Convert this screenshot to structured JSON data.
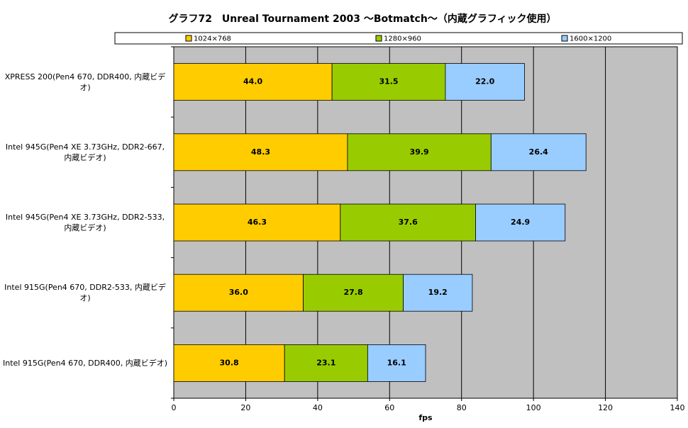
{
  "chart_data": {
    "type": "stacked_bar_horizontal",
    "title": "グラフ72　Unreal Tournament 2003 ～Botmatch～（内蔵グラフィック使用）",
    "categories": [
      "XPRESS 200(Pen4 670, DDR400, 内蔵ビデオ)",
      "Intel 945G(Pen4 XE 3.73GHz, DDR2-667, 内蔵ビデオ)",
      "Intel 945G(Pen4 XE 3.73GHz, DDR2-533, 内蔵ビデオ)",
      "Intel 915G(Pen4 670, DDR2-533, 内蔵ビデオ)",
      "Intel 915G(Pen4 670, DDR400, 内蔵ビデオ)"
    ],
    "series": [
      {
        "name": "1024×768",
        "color": "#ffcc00",
        "values": [
          44.0,
          48.3,
          46.3,
          36.0,
          30.8
        ],
        "value_labels": [
          "44.0",
          "48.3",
          "46.3",
          "36.0",
          "30.8"
        ]
      },
      {
        "name": "1280×960",
        "color": "#99cc00",
        "values": [
          31.5,
          39.9,
          37.6,
          27.8,
          23.1
        ],
        "value_labels": [
          "31.5",
          "39.9",
          "37.6",
          "27.8",
          "23.1"
        ]
      },
      {
        "name": "1600×1200",
        "color": "#99ccff",
        "values": [
          22.0,
          26.4,
          24.9,
          19.2,
          16.1
        ],
        "value_labels": [
          "22.0",
          "26.4",
          "24.9",
          "19.2",
          "16.1"
        ]
      }
    ],
    "x_label": "fps",
    "xlim": [
      0,
      140
    ],
    "xticks": [
      0,
      20,
      40,
      60,
      80,
      100,
      120,
      140
    ],
    "grid": true,
    "legend": "top",
    "plot_background": "#c0c0c0"
  }
}
